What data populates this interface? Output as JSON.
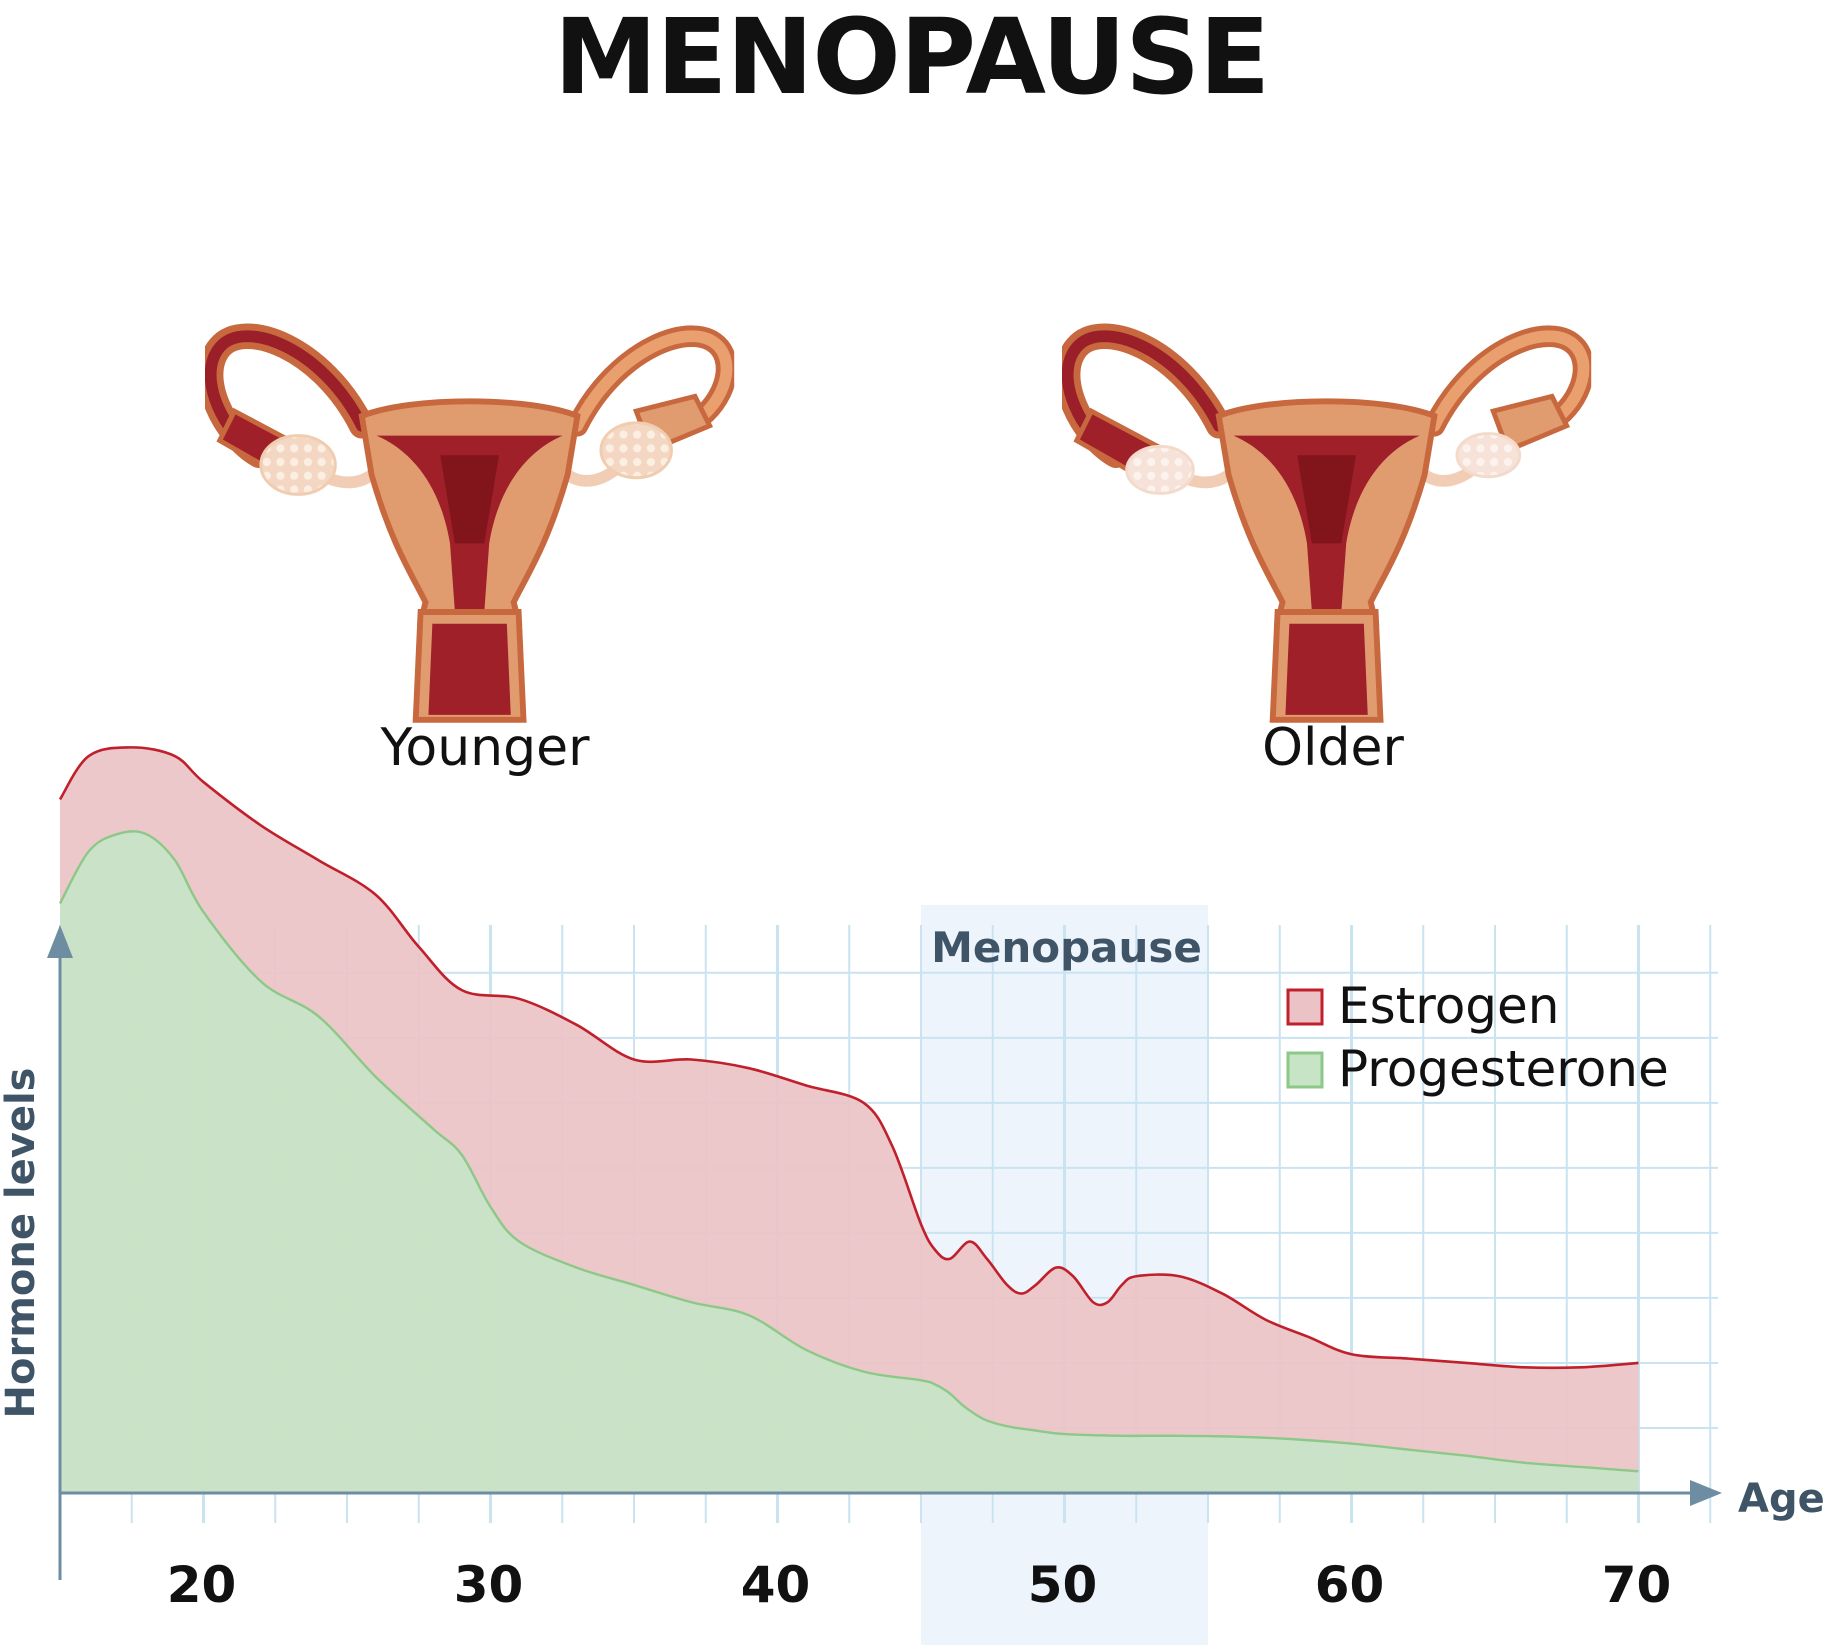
{
  "title": "MENOPAUSE",
  "illustrations": [
    {
      "caption": "Younger"
    },
    {
      "caption": "Older"
    }
  ],
  "colors": {
    "estrogen_fill": "#ebc3c6",
    "estrogen_line": "#c0202b",
    "progesterone_fill": "#c8e4c6",
    "progesterone_line": "#8cc888",
    "grid": "#c9e3f1",
    "axis": "#6e8da3",
    "band": "#edf4fc",
    "organ_muscle": "#e09c6f",
    "organ_outline": "#c8683e",
    "organ_inner": "#a0202a"
  },
  "chart_data": {
    "type": "area",
    "ylabel": "Hormone levels",
    "xlabel": "Age",
    "xlim": [
      15,
      70
    ],
    "ylim": [
      0,
      100
    ],
    "x_ticks": [
      20,
      30,
      40,
      50,
      60,
      70
    ],
    "highlight": {
      "label": "Menopause",
      "x_range": [
        45,
        55
      ]
    },
    "grid": true,
    "legend_position": "top-right",
    "series": [
      {
        "name": "Estrogen",
        "x": [
          15,
          16,
          17.5,
          19,
          20,
          22,
          24,
          26,
          27.5,
          29,
          31,
          33,
          35,
          37,
          39,
          41,
          43,
          44,
          45,
          45.5,
          46,
          46.7,
          47.3,
          48,
          48.5,
          49,
          49.7,
          50.3,
          51,
          51.5,
          52,
          52.5,
          54,
          55.5,
          57,
          58.5,
          60,
          62,
          64,
          66,
          68,
          70
        ],
        "values": [
          80,
          85,
          86,
          85,
          82,
          77,
          73,
          69,
          63,
          58,
          57,
          54,
          50,
          50,
          49,
          47,
          45,
          40,
          31,
          28,
          27,
          29,
          27,
          24,
          23,
          24,
          26,
          25,
          22,
          22,
          24,
          25,
          25,
          23,
          20,
          18,
          16,
          15.5,
          15,
          14.5,
          14.5,
          15
        ]
      },
      {
        "name": "Progesterone",
        "x": [
          15,
          16,
          17,
          18,
          19,
          20,
          22,
          24,
          26,
          28,
          29,
          30,
          31,
          33,
          35,
          37,
          39,
          41,
          43,
          45,
          45.5,
          46,
          46.5,
          47.2,
          48,
          49,
          50,
          52,
          54,
          56,
          58,
          60,
          62,
          64,
          66,
          68,
          70
        ],
        "values": [
          68,
          74,
          76,
          76,
          73,
          67,
          59,
          55,
          48,
          42,
          39,
          33,
          29,
          26,
          24,
          22,
          20.5,
          16.5,
          14,
          13,
          12.5,
          11.5,
          10,
          8.5,
          7.7,
          7.2,
          6.8,
          6.6,
          6.6,
          6.5,
          6.2,
          5.7,
          5,
          4.3,
          3.5,
          3,
          2.5
        ]
      }
    ]
  }
}
